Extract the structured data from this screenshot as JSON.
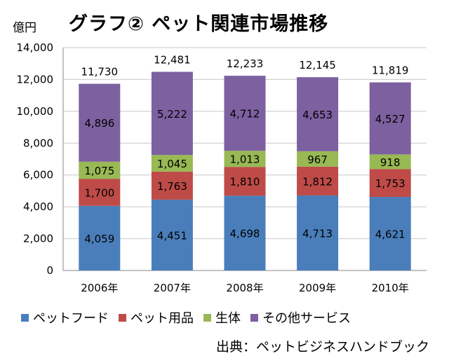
{
  "unit_label": "億円",
  "title": "グラフ② ペット関連市場推移",
  "source": "出典：ペットビジネスハンドブック",
  "chart_data": {
    "type": "bar",
    "stacked": true,
    "categories": [
      "2006年",
      "2007年",
      "2008年",
      "2009年",
      "2010年"
    ],
    "series": [
      {
        "name": "ペットフード",
        "color": "#4a7ebb",
        "values": [
          4059,
          4451,
          4698,
          4713,
          4621
        ],
        "labels": [
          "4,059",
          "4,451",
          "4,698",
          "4,713",
          "4,621"
        ]
      },
      {
        "name": "ペット用品",
        "color": "#be4b48",
        "values": [
          1700,
          1763,
          1810,
          1812,
          1753
        ],
        "labels": [
          "1,700",
          "1,763",
          "1,810",
          "1,812",
          "1,753"
        ]
      },
      {
        "name": "生体",
        "color": "#98b954",
        "values": [
          1075,
          1045,
          1013,
          967,
          918
        ],
        "labels": [
          "1,075",
          "1,045",
          "1,013",
          "967",
          "918"
        ]
      },
      {
        "name": "その他サービス",
        "color": "#7d60a0",
        "values": [
          4896,
          5222,
          4712,
          4653,
          4527
        ],
        "labels": [
          "4,896",
          "5,222",
          "4,712",
          "4,653",
          "4,527"
        ]
      }
    ],
    "totals": [
      11730,
      12481,
      12233,
      12145,
      11819
    ],
    "total_labels": [
      "11,730",
      "12,481",
      "12,233",
      "12,145",
      "11,819"
    ],
    "ylim": [
      0,
      14000
    ],
    "yticks": [
      0,
      2000,
      4000,
      6000,
      8000,
      10000,
      12000,
      14000
    ],
    "ytick_labels": [
      "0",
      "2,000",
      "4,000",
      "6,000",
      "8,000",
      "10,000",
      "12,000",
      "14,000"
    ],
    "grid": true,
    "legend_position": "bottom"
  }
}
